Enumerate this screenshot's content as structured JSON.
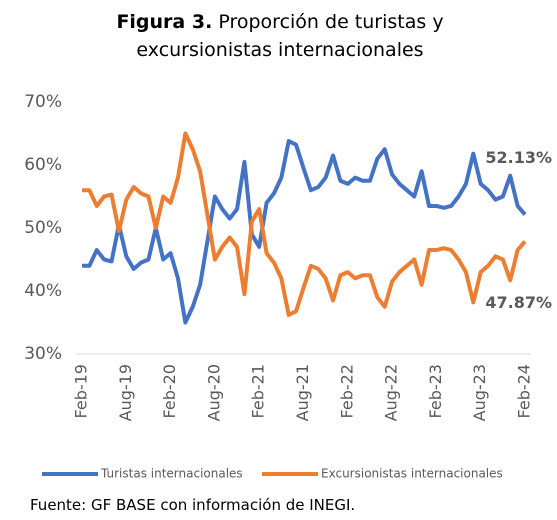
{
  "chart_data": {
    "type": "line",
    "title_label": "Figura 3.",
    "title": "Proporción de turistas y excursionistas internacionales",
    "source": "Fuente: GF BASE con información de INEGI.",
    "categories": [
      "Feb-19",
      null,
      null,
      null,
      null,
      null,
      "Aug-19",
      null,
      null,
      null,
      null,
      null,
      "Feb-20",
      null,
      null,
      null,
      null,
      null,
      "Aug-20",
      null,
      null,
      null,
      null,
      null,
      "Feb-21",
      null,
      null,
      null,
      null,
      null,
      "Aug-21",
      null,
      null,
      null,
      null,
      null,
      "Feb-22",
      null,
      null,
      null,
      null,
      null,
      "Aug-22",
      null,
      null,
      null,
      null,
      null,
      "Feb-23",
      null,
      null,
      null,
      null,
      null,
      "Aug-23",
      null,
      null,
      null,
      null,
      null,
      "Feb-24"
    ],
    "series": [
      {
        "name": "Turistas internacionales",
        "color": "#4472c4",
        "values": [
          44,
          44,
          46.5,
          45,
          44.7,
          50.5,
          45.5,
          43.5,
          44.5,
          45,
          50,
          45,
          46,
          42,
          35,
          37.5,
          41,
          48,
          55,
          53,
          51.5,
          53,
          60.5,
          49,
          47,
          54,
          55.5,
          58,
          63.8,
          63.2,
          59.5,
          56,
          56.5,
          58,
          61.5,
          57.5,
          57,
          58,
          57.5,
          57.5,
          61,
          62.5,
          58.5,
          57,
          56,
          55,
          59,
          53.5,
          53.5,
          53.2,
          53.5,
          55,
          57,
          61.8,
          57,
          56,
          54.5,
          55,
          58.3,
          53.5,
          52.13
        ],
        "value_labels": [
          null,
          null,
          null,
          null,
          null,
          null,
          null,
          null,
          null,
          null,
          null,
          null,
          null,
          null,
          null,
          null,
          null,
          null,
          null,
          null,
          null,
          null,
          null,
          null,
          null,
          null,
          null,
          null,
          null,
          null,
          null,
          null,
          null,
          null,
          null,
          null,
          null,
          null,
          null,
          null,
          null,
          null,
          null,
          null,
          null,
          null,
          null,
          null,
          null,
          null,
          null,
          null,
          null,
          null,
          null,
          null,
          null,
          null,
          null,
          null,
          "52.13%"
        ]
      },
      {
        "name": "Excursionistas internacionales",
        "color": "#ed7d31",
        "values": [
          56,
          56,
          53.5,
          55,
          55.3,
          49.5,
          54.5,
          56.5,
          55.5,
          55,
          50,
          55,
          54,
          58,
          65,
          62.5,
          59,
          52,
          45,
          47,
          48.5,
          47,
          39.5,
          51,
          53,
          46,
          44.5,
          42,
          36.2,
          36.8,
          40.5,
          44,
          43.5,
          42,
          38.5,
          42.5,
          43,
          42,
          42.5,
          42.5,
          39,
          37.5,
          41.5,
          43,
          44,
          45,
          41,
          46.5,
          46.5,
          46.8,
          46.5,
          45,
          43,
          38.2,
          43,
          44,
          45.5,
          45,
          41.7,
          46.5,
          47.87
        ],
        "value_labels": [
          null,
          null,
          null,
          null,
          null,
          null,
          null,
          null,
          null,
          null,
          null,
          null,
          null,
          null,
          null,
          null,
          null,
          null,
          null,
          null,
          null,
          null,
          null,
          null,
          null,
          null,
          null,
          null,
          null,
          null,
          null,
          null,
          null,
          null,
          null,
          null,
          null,
          null,
          null,
          null,
          null,
          null,
          null,
          null,
          null,
          null,
          null,
          null,
          null,
          null,
          null,
          null,
          null,
          null,
          null,
          null,
          null,
          null,
          null,
          null,
          "47.87%"
        ]
      }
    ],
    "ylim": [
      30,
      70
    ],
    "yticks": [
      {
        "value": 30,
        "label": "30%"
      },
      {
        "value": 40,
        "label": "40%"
      },
      {
        "value": 50,
        "label": "50%"
      },
      {
        "value": 60,
        "label": "60%"
      },
      {
        "value": 70,
        "label": "70%"
      }
    ],
    "legend": "bottom"
  }
}
